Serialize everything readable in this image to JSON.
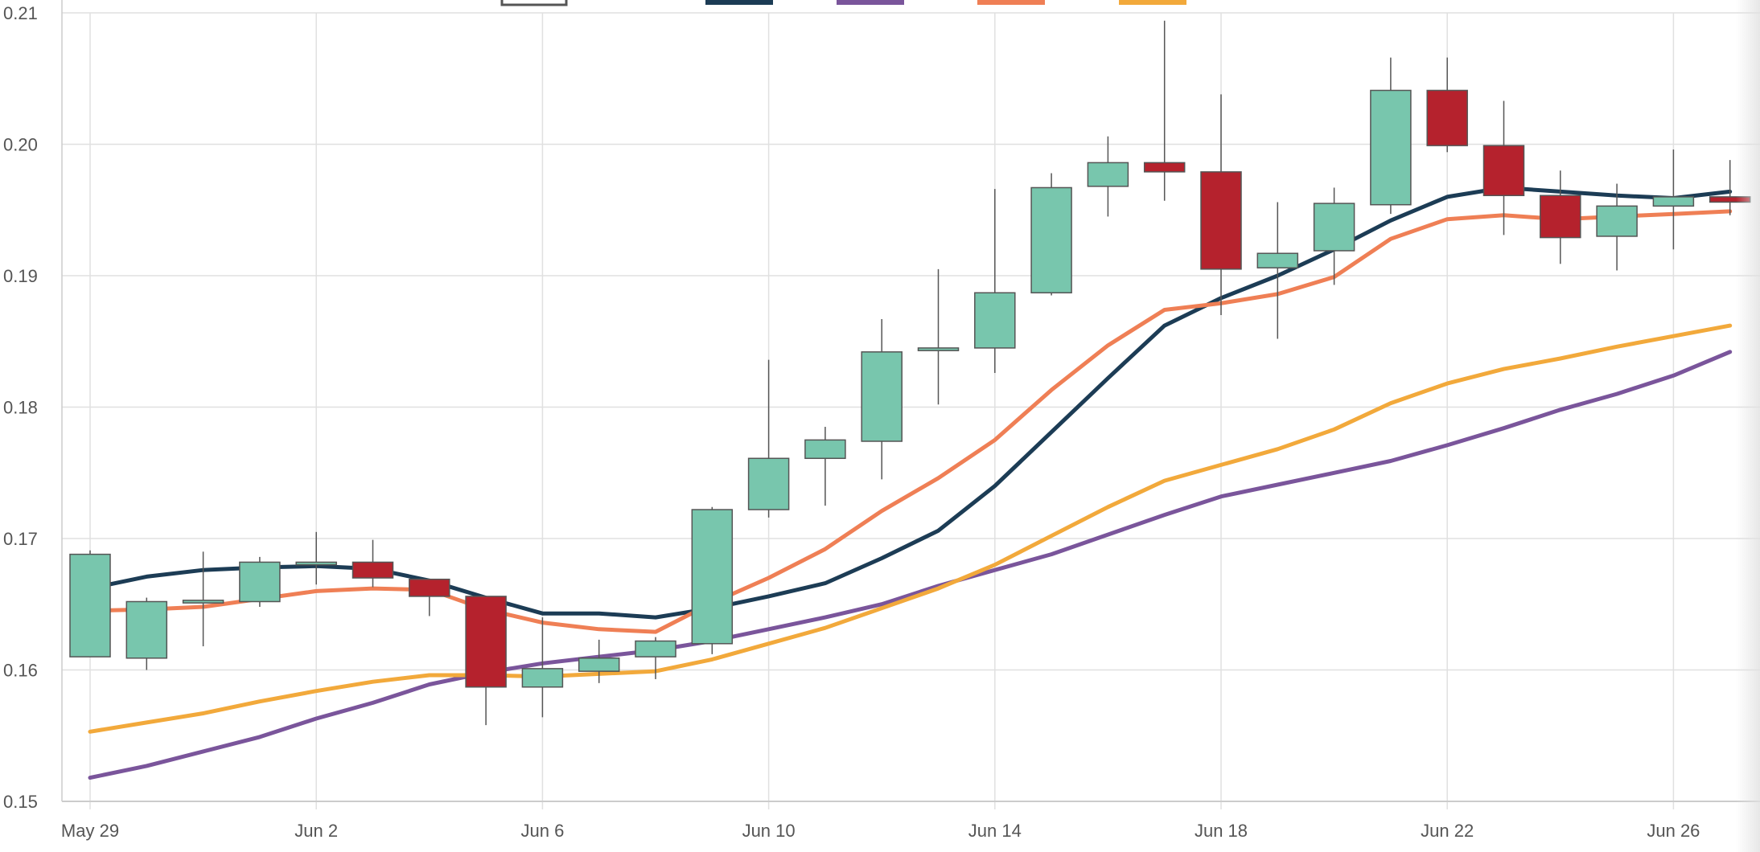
{
  "chart_data": {
    "type": "candlestick",
    "title": "",
    "xlabel": "",
    "ylabel": "",
    "ylim": [
      0.15,
      0.21
    ],
    "y_ticks": [
      0.15,
      0.16,
      0.17,
      0.18,
      0.19,
      0.2,
      0.21
    ],
    "y_tick_labels": [
      "0.15",
      "0.16",
      "0.17",
      "0.18",
      "0.19",
      "0.20",
      "0.21"
    ],
    "x_ticks": [
      {
        "date": "2024-05-29",
        "label": "May 29"
      },
      {
        "date": "2024-06-02",
        "label": "Jun 2"
      },
      {
        "date": "2024-06-06",
        "label": "Jun 6"
      },
      {
        "date": "2024-06-10",
        "label": "Jun 10"
      },
      {
        "date": "2024-06-14",
        "label": "Jun 14"
      },
      {
        "date": "2024-06-18",
        "label": "Jun 18"
      },
      {
        "date": "2024-06-22",
        "label": "Jun 22"
      },
      {
        "date": "2024-06-26",
        "label": "Jun 26"
      }
    ],
    "grid": true,
    "legend_position": "top",
    "colors": {
      "up": "#78c6ad",
      "down": "#b5222d",
      "wick": "#555555",
      "grid": "#e0e0e0",
      "axis": "#cccccc",
      "legend_box": "#555555"
    },
    "candles": [
      {
        "date": "2024-05-29",
        "open": 0.161,
        "high": 0.1691,
        "low": 0.161,
        "close": 0.1688
      },
      {
        "date": "2024-05-30",
        "open": 0.1609,
        "high": 0.1655,
        "low": 0.16,
        "close": 0.1652
      },
      {
        "date": "2024-05-31",
        "open": 0.1651,
        "high": 0.169,
        "low": 0.1618,
        "close": 0.1653
      },
      {
        "date": "2024-06-01",
        "open": 0.1652,
        "high": 0.1686,
        "low": 0.1648,
        "close": 0.1682
      },
      {
        "date": "2024-06-02",
        "open": 0.168,
        "high": 0.1705,
        "low": 0.1665,
        "close": 0.1682
      },
      {
        "date": "2024-06-03",
        "open": 0.1682,
        "high": 0.1699,
        "low": 0.1663,
        "close": 0.167
      },
      {
        "date": "2024-06-04",
        "open": 0.1669,
        "high": 0.1669,
        "low": 0.1641,
        "close": 0.1656
      },
      {
        "date": "2024-06-05",
        "open": 0.1656,
        "high": 0.1656,
        "low": 0.1558,
        "close": 0.1587
      },
      {
        "date": "2024-06-06",
        "open": 0.1587,
        "high": 0.164,
        "low": 0.1564,
        "close": 0.1601
      },
      {
        "date": "2024-06-07",
        "open": 0.1599,
        "high": 0.1623,
        "low": 0.159,
        "close": 0.1609
      },
      {
        "date": "2024-06-08",
        "open": 0.161,
        "high": 0.1625,
        "low": 0.1593,
        "close": 0.1622
      },
      {
        "date": "2024-06-09",
        "open": 0.162,
        "high": 0.1724,
        "low": 0.1612,
        "close": 0.1722
      },
      {
        "date": "2024-06-10",
        "open": 0.1722,
        "high": 0.1836,
        "low": 0.1716,
        "close": 0.1761
      },
      {
        "date": "2024-06-11",
        "open": 0.1761,
        "high": 0.1785,
        "low": 0.1725,
        "close": 0.1775
      },
      {
        "date": "2024-06-12",
        "open": 0.1774,
        "high": 0.1867,
        "low": 0.1745,
        "close": 0.1842
      },
      {
        "date": "2024-06-13",
        "open": 0.1843,
        "high": 0.1905,
        "low": 0.1802,
        "close": 0.1845
      },
      {
        "date": "2024-06-14",
        "open": 0.1845,
        "high": 0.1966,
        "low": 0.1826,
        "close": 0.1887
      },
      {
        "date": "2024-06-15",
        "open": 0.1887,
        "high": 0.1978,
        "low": 0.1885,
        "close": 0.1967
      },
      {
        "date": "2024-06-16",
        "open": 0.1968,
        "high": 0.2006,
        "low": 0.1945,
        "close": 0.1986
      },
      {
        "date": "2024-06-17",
        "open": 0.1986,
        "high": 0.2094,
        "low": 0.1957,
        "close": 0.1979
      },
      {
        "date": "2024-06-18",
        "open": 0.1979,
        "high": 0.2038,
        "low": 0.187,
        "close": 0.1905
      },
      {
        "date": "2024-06-19",
        "open": 0.1906,
        "high": 0.1956,
        "low": 0.1852,
        "close": 0.1917
      },
      {
        "date": "2024-06-20",
        "open": 0.1919,
        "high": 0.1967,
        "low": 0.1893,
        "close": 0.1955
      },
      {
        "date": "2024-06-21",
        "open": 0.1954,
        "high": 0.2066,
        "low": 0.1947,
        "close": 0.2041
      },
      {
        "date": "2024-06-22",
        "open": 0.2041,
        "high": 0.2066,
        "low": 0.1994,
        "close": 0.1999
      },
      {
        "date": "2024-06-23",
        "open": 0.1999,
        "high": 0.2033,
        "low": 0.1931,
        "close": 0.1961
      },
      {
        "date": "2024-06-24",
        "open": 0.1961,
        "high": 0.198,
        "low": 0.1909,
        "close": 0.1929
      },
      {
        "date": "2024-06-25",
        "open": 0.193,
        "high": 0.197,
        "low": 0.1904,
        "close": 0.1953
      },
      {
        "date": "2024-06-26",
        "open": 0.1953,
        "high": 0.1996,
        "low": 0.192,
        "close": 0.196
      },
      {
        "date": "2024-06-27",
        "open": 0.196,
        "high": 0.1988,
        "low": 0.1946,
        "close": 0.1956
      }
    ],
    "series": [
      {
        "color": "#1c3c55",
        "values": [
          0.1662,
          0.1671,
          0.1676,
          0.1678,
          0.1679,
          0.1677,
          0.1668,
          0.1655,
          0.1643,
          0.1643,
          0.164,
          0.1647,
          0.1656,
          0.1666,
          0.1685,
          0.1706,
          0.174,
          0.1781,
          0.1822,
          0.1862,
          0.1883,
          0.19,
          0.192,
          0.1942,
          0.196,
          0.1967,
          0.1964,
          0.1961,
          0.1959,
          0.1964
        ]
      },
      {
        "color": "#7a559b",
        "values": [
          0.1518,
          0.1527,
          0.1538,
          0.1549,
          0.1563,
          0.1575,
          0.1589,
          0.1598,
          0.1605,
          0.161,
          0.1615,
          0.1622,
          0.1631,
          0.164,
          0.165,
          0.1664,
          0.1676,
          0.1688,
          0.1703,
          0.1718,
          0.1732,
          0.1741,
          0.175,
          0.1759,
          0.1771,
          0.1784,
          0.1798,
          0.181,
          0.1824,
          0.1842
        ]
      },
      {
        "color": "#ef7f55",
        "values": [
          0.1645,
          0.1646,
          0.1648,
          0.1654,
          0.166,
          0.1662,
          0.1661,
          0.1646,
          0.1636,
          0.1631,
          0.1629,
          0.1651,
          0.167,
          0.1692,
          0.1721,
          0.1746,
          0.1775,
          0.1813,
          0.1847,
          0.1874,
          0.1879,
          0.1886,
          0.1899,
          0.1928,
          0.1943,
          0.1946,
          0.1943,
          0.1945,
          0.1947,
          0.1949
        ]
      },
      {
        "color": "#f2a93b",
        "values": [
          0.1553,
          0.156,
          0.1567,
          0.1576,
          0.1584,
          0.1591,
          0.1596,
          0.1596,
          0.1595,
          0.1597,
          0.1599,
          0.1608,
          0.162,
          0.1632,
          0.1647,
          0.1662,
          0.168,
          0.1702,
          0.1724,
          0.1744,
          0.1756,
          0.1768,
          0.1783,
          0.1803,
          0.1818,
          0.1829,
          0.1837,
          0.1846,
          0.1854,
          0.1862
        ]
      }
    ]
  }
}
